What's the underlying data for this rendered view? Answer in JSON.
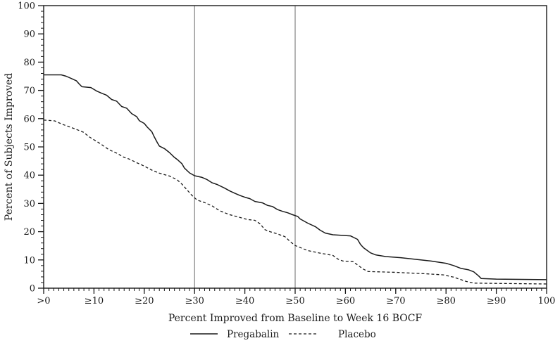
{
  "chart_data": {
    "type": "line",
    "title": "",
    "xlabel": "Percent Improved from Baseline to Week 16 BOCF",
    "ylabel": "Percent of Subjects Improved",
    "xlim": [
      0,
      100
    ],
    "ylim": [
      0,
      100
    ],
    "x_tick_values": [
      0,
      10,
      20,
      30,
      40,
      50,
      60,
      70,
      80,
      90,
      100
    ],
    "x_tick_labels": [
      ">0",
      "≥10",
      "≥20",
      "≥30",
      "≥40",
      "≥50",
      "≥60",
      "≥70",
      "≥80",
      "≥90",
      "100"
    ],
    "y_tick_values": [
      0,
      10,
      20,
      30,
      40,
      50,
      60,
      70,
      80,
      90,
      100
    ],
    "y_tick_labels": [
      "0",
      "10",
      "20",
      "30",
      "40",
      "50",
      "60",
      "70",
      "80",
      "90",
      "100"
    ],
    "x_minor_step": 1,
    "y_minor_step": 2,
    "grid": "off",
    "reference_lines_x": [
      30,
      50
    ],
    "legend_position": "bottom",
    "axis_color": "#1a1a1a",
    "ref_line_color": "#6b6b6b",
    "series": [
      {
        "name": "Pregabalin",
        "style": "solid",
        "color": "#1a1a1a",
        "points": [
          [
            0,
            75.5
          ],
          [
            3.5,
            75.5
          ],
          [
            4.5,
            75
          ],
          [
            5.5,
            74.2
          ],
          [
            6.5,
            73.4
          ],
          [
            7,
            72.4
          ],
          [
            7.6,
            71.3
          ],
          [
            9.4,
            71
          ],
          [
            10.5,
            69.8
          ],
          [
            11.5,
            69
          ],
          [
            12.5,
            68.3
          ],
          [
            13.5,
            66.8
          ],
          [
            14.5,
            66.2
          ],
          [
            15.5,
            64.3
          ],
          [
            16.5,
            63.7
          ],
          [
            17.5,
            61.8
          ],
          [
            18.5,
            60.7
          ],
          [
            19,
            59.3
          ],
          [
            20,
            58.3
          ],
          [
            20.6,
            57
          ],
          [
            21.5,
            55.4
          ],
          [
            22,
            53.5
          ],
          [
            22.6,
            51.5
          ],
          [
            23,
            50.3
          ],
          [
            24,
            49.4
          ],
          [
            25,
            48
          ],
          [
            26,
            46.3
          ],
          [
            26.6,
            45.5
          ],
          [
            27.5,
            44
          ],
          [
            28,
            42.5
          ],
          [
            29,
            40.8
          ],
          [
            30,
            39.8
          ],
          [
            31.5,
            39.2
          ],
          [
            32.5,
            38.4
          ],
          [
            33.5,
            37.3
          ],
          [
            34.5,
            36.7
          ],
          [
            36,
            35.4
          ],
          [
            37,
            34.4
          ],
          [
            38,
            33.6
          ],
          [
            39,
            32.8
          ],
          [
            40,
            32.2
          ],
          [
            41,
            31.7
          ],
          [
            42,
            30.7
          ],
          [
            43.5,
            30.2
          ],
          [
            44.5,
            29.3
          ],
          [
            45.5,
            28.9
          ],
          [
            46.5,
            27.8
          ],
          [
            47.5,
            27.2
          ],
          [
            48.5,
            26.7
          ],
          [
            49.5,
            26
          ],
          [
            50.5,
            25.4
          ],
          [
            51,
            24.5
          ],
          [
            52.5,
            23
          ],
          [
            54,
            21.8
          ],
          [
            55,
            20.5
          ],
          [
            56,
            19.5
          ],
          [
            57.5,
            18.9
          ],
          [
            61,
            18.5
          ],
          [
            62.4,
            17.3
          ],
          [
            63,
            15.5
          ],
          [
            63.6,
            14.3
          ],
          [
            65,
            12.5
          ],
          [
            66,
            11.8
          ],
          [
            68,
            11.2
          ],
          [
            71,
            10.8
          ],
          [
            74,
            10.2
          ],
          [
            77,
            9.6
          ],
          [
            80,
            8.8
          ],
          [
            81.5,
            8
          ],
          [
            83,
            7
          ],
          [
            84.5,
            6.5
          ],
          [
            85.5,
            5.8
          ],
          [
            86.5,
            4.3
          ],
          [
            87,
            3.4
          ],
          [
            90,
            3.2
          ],
          [
            95,
            3.1
          ],
          [
            100,
            3
          ]
        ]
      },
      {
        "name": "Placebo",
        "style": "dashed",
        "color": "#1a1a1a",
        "points": [
          [
            0,
            59.5
          ],
          [
            2.2,
            59.2
          ],
          [
            3.7,
            58
          ],
          [
            5,
            57.2
          ],
          [
            6.5,
            56.2
          ],
          [
            7.9,
            55.2
          ],
          [
            9.1,
            53.5
          ],
          [
            10.3,
            52.2
          ],
          [
            11.4,
            51
          ],
          [
            12,
            50.2
          ],
          [
            13,
            49
          ],
          [
            14.5,
            47.8
          ],
          [
            16,
            46.3
          ],
          [
            17,
            45.7
          ],
          [
            18.5,
            44.4
          ],
          [
            20,
            43.2
          ],
          [
            21.5,
            41.8
          ],
          [
            23,
            40.7
          ],
          [
            25,
            39.7
          ],
          [
            26.5,
            38.4
          ],
          [
            27.5,
            36.8
          ],
          [
            28.5,
            34.8
          ],
          [
            29.5,
            32.8
          ],
          [
            30.5,
            31.2
          ],
          [
            32,
            30.3
          ],
          [
            33.5,
            29.1
          ],
          [
            35,
            27.4
          ],
          [
            37,
            26
          ],
          [
            38.5,
            25.3
          ],
          [
            40.5,
            24.3
          ],
          [
            42,
            24
          ],
          [
            43,
            22.8
          ],
          [
            44,
            20.7
          ],
          [
            45,
            20
          ],
          [
            46.5,
            19.2
          ],
          [
            48,
            18.2
          ],
          [
            49,
            16.5
          ],
          [
            50,
            15.1
          ],
          [
            52.5,
            13.3
          ],
          [
            55,
            12.4
          ],
          [
            57.5,
            11.6
          ],
          [
            58.5,
            10.3
          ],
          [
            59.5,
            9.6
          ],
          [
            61.5,
            9.4
          ],
          [
            62.5,
            8.1
          ],
          [
            63.5,
            6.8
          ],
          [
            64.5,
            5.9
          ],
          [
            70,
            5.6
          ],
          [
            76,
            5.1
          ],
          [
            79.5,
            4.7
          ],
          [
            81.5,
            3.9
          ],
          [
            82.5,
            3.3
          ],
          [
            84,
            2.4
          ],
          [
            85.5,
            1.8
          ],
          [
            90,
            1.7
          ],
          [
            100,
            1.5
          ]
        ]
      }
    ]
  }
}
